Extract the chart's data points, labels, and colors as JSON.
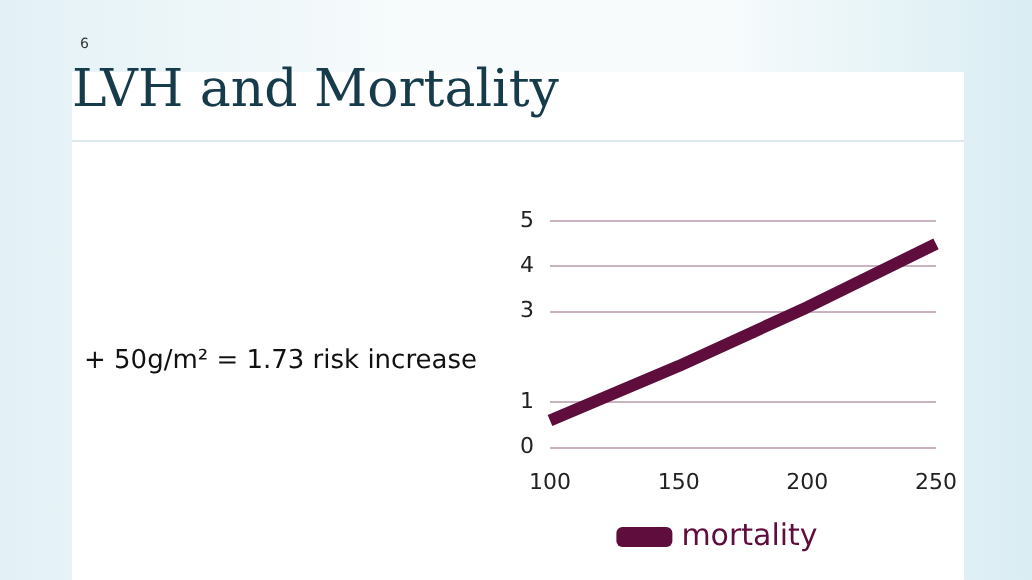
{
  "chart_data": {
    "type": "line",
    "title": "LVH and Mortality",
    "annotations": [
      "6",
      "+ 50g/m² = 1.73 risk increase"
    ],
    "categories": [
      "100",
      "150",
      "200",
      "250"
    ],
    "series": [
      {
        "name": "mortality",
        "color": "#5e0d3c",
        "values": [
          0.6,
          1.8,
          3.1,
          4.5
        ]
      }
    ],
    "ylim": [
      0,
      5
    ],
    "yticks": [
      0,
      1,
      3,
      4,
      5
    ],
    "grid": "y",
    "legend": "bottom",
    "marker": "none",
    "line_style": "solid"
  }
}
